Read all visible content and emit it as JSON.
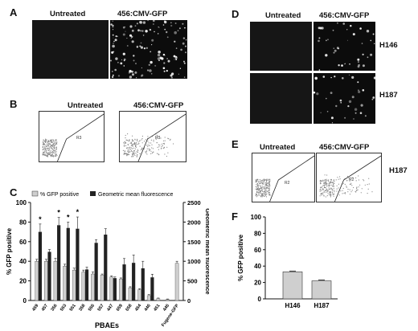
{
  "panels": {
    "A": {
      "label": "A",
      "untreated": "Untreated",
      "treated": "456:CMV-GFP"
    },
    "B": {
      "label": "B",
      "untreated": "Untreated",
      "treated": "456:CMV-GFP",
      "gate": "R3"
    },
    "C": {
      "label": "C",
      "legend": [
        "% GFP positive",
        "Geometric mean fluorescence"
      ],
      "xlabel": "PBAEs"
    },
    "D": {
      "label": "D",
      "untreated": "Untreated",
      "treated": "456:CMV-GFP",
      "rows": [
        "H146",
        "H187"
      ]
    },
    "E": {
      "label": "E",
      "untreated": "Untreated",
      "treated": "456:CMV-GFP",
      "gate": "R2",
      "cell_line": "H187"
    },
    "F": {
      "label": "F"
    }
  },
  "chart_data": [
    {
      "id": "C",
      "type": "bar",
      "categories": [
        "459",
        "457",
        "356",
        "553",
        "551",
        "358",
        "556",
        "557",
        "447",
        "659",
        "658",
        "454",
        "446",
        "451",
        "446",
        "Fugene-GFP"
      ],
      "series": [
        {
          "name": "% GFP positive",
          "axis": "left",
          "color": "#cfcfcf",
          "values": [
            40,
            40,
            40,
            35,
            31,
            29,
            27,
            26,
            24,
            22,
            13,
            11,
            5,
            2,
            1,
            38
          ],
          "errors": [
            2,
            2,
            3,
            2,
            2,
            2,
            2,
            1,
            1,
            1,
            1,
            1,
            1,
            0.5,
            0.5,
            2
          ]
        },
        {
          "name": "Geometric mean fluorescence",
          "axis": "right",
          "color": "#222222",
          "values": [
            1750,
            1240,
            1920,
            1850,
            1830,
            790,
            1470,
            1680,
            570,
            920,
            960,
            820,
            590,
            0,
            0,
            0
          ],
          "errors": [
            200,
            60,
            200,
            150,
            300,
            60,
            80,
            150,
            30,
            150,
            200,
            180,
            80,
            0,
            0,
            0
          ]
        }
      ],
      "ylabel": "% GFP positive",
      "ylim": [
        0,
        100
      ],
      "yticks": [
        0,
        20,
        40,
        60,
        80,
        100
      ],
      "y2label": "Geometric mean fluorescence",
      "y2lim": [
        0,
        2500
      ],
      "y2ticks": [
        0,
        500,
        1000,
        1500,
        2000,
        2500
      ],
      "xlabel": "PBAEs",
      "annotations": [
        "*",
        "*",
        "*",
        "*"
      ],
      "legend": "top"
    },
    {
      "id": "F",
      "type": "bar",
      "categories": [
        "H146",
        "H187"
      ],
      "values": [
        33,
        22
      ],
      "errors": [
        1,
        1
      ],
      "ylabel": "% GFP positive",
      "ylim": [
        0,
        100
      ],
      "yticks": [
        0,
        20,
        40,
        60,
        80,
        100
      ]
    }
  ]
}
